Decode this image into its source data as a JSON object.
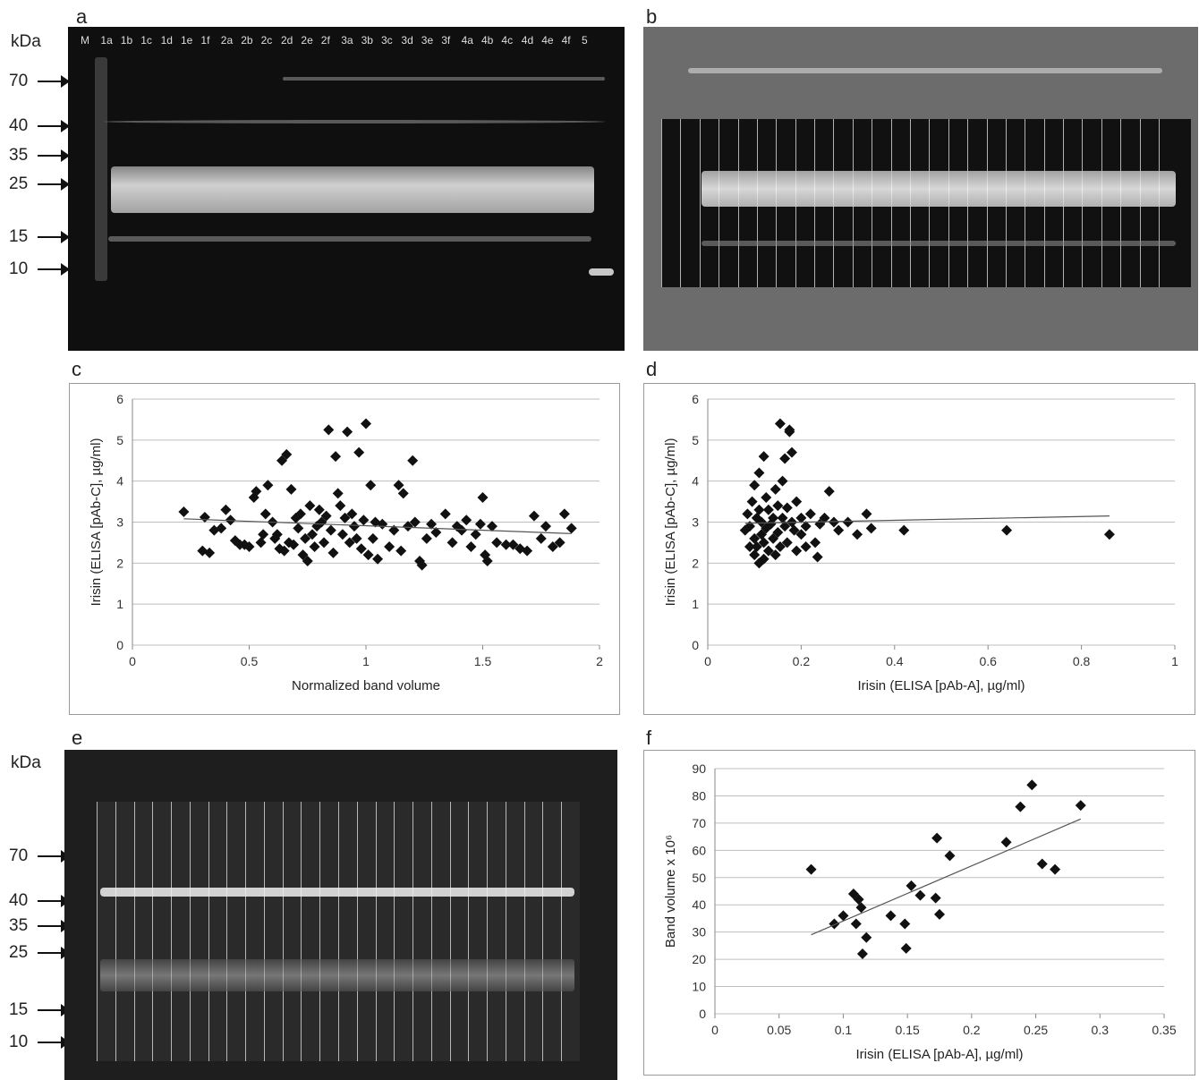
{
  "panels": {
    "a": "a",
    "b": "b",
    "c": "c",
    "d": "d",
    "e": "e",
    "f": "f"
  },
  "gel_a": {
    "unit": "kDa",
    "markers": [
      "70",
      "40",
      "35",
      "25",
      "15",
      "10"
    ],
    "lanes": [
      "M",
      "1a",
      "1b",
      "1c",
      "1d",
      "1e",
      "1f",
      "2a",
      "2b",
      "2c",
      "2d",
      "2e",
      "2f",
      "3a",
      "3b",
      "3c",
      "3d",
      "3e",
      "3f",
      "4a",
      "4b",
      "4c",
      "4d",
      "4e",
      "4f",
      "5"
    ]
  },
  "gel_e": {
    "unit": "kDa",
    "markers": [
      "70",
      "40",
      "35",
      "25",
      "15",
      "10"
    ]
  },
  "chart_data": [
    {
      "id": "c",
      "type": "scatter",
      "xlabel": "Normalized band volume",
      "ylabel": "Irisin (ELISA [pAb-C], µg/ml)",
      "xlim": [
        0,
        2
      ],
      "ylim": [
        0,
        6
      ],
      "xticks": [
        "0",
        "0.5",
        "1",
        "1.5",
        "2"
      ],
      "yticks": [
        "0",
        "1",
        "2",
        "3",
        "4",
        "5",
        "6"
      ],
      "trend": [
        [
          0.22,
          3.08
        ],
        [
          1.88,
          2.72
        ]
      ],
      "points": [
        [
          0.22,
          3.25
        ],
        [
          0.3,
          2.3
        ],
        [
          0.31,
          3.12
        ],
        [
          0.33,
          2.25
        ],
        [
          0.35,
          2.8
        ],
        [
          0.38,
          2.85
        ],
        [
          0.4,
          3.3
        ],
        [
          0.42,
          3.05
        ],
        [
          0.44,
          2.55
        ],
        [
          0.46,
          2.45
        ],
        [
          0.48,
          2.45
        ],
        [
          0.5,
          2.4
        ],
        [
          0.52,
          3.6
        ],
        [
          0.53,
          3.75
        ],
        [
          0.55,
          2.5
        ],
        [
          0.56,
          2.7
        ],
        [
          0.57,
          3.2
        ],
        [
          0.58,
          3.9
        ],
        [
          0.6,
          3.0
        ],
        [
          0.61,
          2.6
        ],
        [
          0.62,
          2.7
        ],
        [
          0.63,
          2.35
        ],
        [
          0.64,
          4.5
        ],
        [
          0.65,
          2.3
        ],
        [
          0.66,
          4.65
        ],
        [
          0.67,
          2.5
        ],
        [
          0.68,
          3.8
        ],
        [
          0.69,
          2.45
        ],
        [
          0.7,
          3.1
        ],
        [
          0.71,
          2.85
        ],
        [
          0.72,
          3.2
        ],
        [
          0.73,
          2.2
        ],
        [
          0.74,
          2.6
        ],
        [
          0.75,
          2.05
        ],
        [
          0.76,
          3.4
        ],
        [
          0.77,
          2.7
        ],
        [
          0.78,
          2.4
        ],
        [
          0.79,
          2.9
        ],
        [
          0.8,
          3.3
        ],
        [
          0.81,
          3.0
        ],
        [
          0.82,
          2.5
        ],
        [
          0.83,
          3.15
        ],
        [
          0.84,
          5.25
        ],
        [
          0.85,
          2.8
        ],
        [
          0.86,
          2.25
        ],
        [
          0.87,
          4.6
        ],
        [
          0.88,
          3.7
        ],
        [
          0.89,
          3.4
        ],
        [
          0.9,
          2.7
        ],
        [
          0.91,
          3.1
        ],
        [
          0.92,
          5.2
        ],
        [
          0.93,
          2.5
        ],
        [
          0.94,
          3.2
        ],
        [
          0.95,
          2.9
        ],
        [
          0.96,
          2.6
        ],
        [
          0.97,
          4.7
        ],
        [
          0.98,
          2.35
        ],
        [
          0.99,
          3.05
        ],
        [
          1.0,
          5.4
        ],
        [
          1.01,
          2.2
        ],
        [
          1.02,
          3.9
        ],
        [
          1.03,
          2.6
        ],
        [
          1.04,
          3.0
        ],
        [
          1.05,
          2.1
        ],
        [
          1.07,
          2.95
        ],
        [
          1.1,
          2.4
        ],
        [
          1.12,
          2.8
        ],
        [
          1.14,
          3.9
        ],
        [
          1.15,
          2.3
        ],
        [
          1.16,
          3.7
        ],
        [
          1.18,
          2.9
        ],
        [
          1.2,
          4.5
        ],
        [
          1.21,
          3.0
        ],
        [
          1.23,
          2.05
        ],
        [
          1.24,
          1.95
        ],
        [
          1.26,
          2.6
        ],
        [
          1.28,
          2.95
        ],
        [
          1.3,
          2.75
        ],
        [
          1.34,
          3.2
        ],
        [
          1.37,
          2.5
        ],
        [
          1.39,
          2.9
        ],
        [
          1.41,
          2.8
        ],
        [
          1.43,
          3.05
        ],
        [
          1.45,
          2.4
        ],
        [
          1.47,
          2.7
        ],
        [
          1.49,
          2.95
        ],
        [
          1.5,
          3.6
        ],
        [
          1.51,
          2.2
        ],
        [
          1.52,
          2.05
        ],
        [
          1.54,
          2.9
        ],
        [
          1.56,
          2.5
        ],
        [
          1.6,
          2.45
        ],
        [
          1.63,
          2.45
        ],
        [
          1.66,
          2.35
        ],
        [
          1.69,
          2.3
        ],
        [
          1.72,
          3.15
        ],
        [
          1.75,
          2.6
        ],
        [
          1.77,
          2.9
        ],
        [
          1.8,
          2.4
        ],
        [
          1.83,
          2.5
        ],
        [
          1.85,
          3.2
        ],
        [
          1.88,
          2.85
        ]
      ]
    },
    {
      "id": "d",
      "type": "scatter",
      "xlabel": "Irisin (ELISA [pAb-A], µg/ml)",
      "ylabel": "Irisin (ELISA [pAb-C], µg/ml)",
      "xlim": [
        0,
        1
      ],
      "ylim": [
        0,
        6
      ],
      "xticks": [
        "0",
        "0.2",
        "0.4",
        "0.6",
        "0.8",
        "1"
      ],
      "yticks": [
        "0",
        "1",
        "2",
        "3",
        "4",
        "5",
        "6"
      ],
      "trend": [
        [
          0.08,
          2.97
        ],
        [
          0.86,
          3.15
        ]
      ],
      "points": [
        [
          0.08,
          2.8
        ],
        [
          0.085,
          3.2
        ],
        [
          0.09,
          2.4
        ],
        [
          0.09,
          2.9
        ],
        [
          0.095,
          3.5
        ],
        [
          0.1,
          2.2
        ],
        [
          0.1,
          2.6
        ],
        [
          0.1,
          3.9
        ],
        [
          0.105,
          3.1
        ],
        [
          0.105,
          2.4
        ],
        [
          0.11,
          4.2
        ],
        [
          0.11,
          2.0
        ],
        [
          0.11,
          3.3
        ],
        [
          0.115,
          2.7
        ],
        [
          0.115,
          3.0
        ],
        [
          0.12,
          4.6
        ],
        [
          0.12,
          2.1
        ],
        [
          0.12,
          2.5
        ],
        [
          0.125,
          3.6
        ],
        [
          0.125,
          2.85
        ],
        [
          0.13,
          3.3
        ],
        [
          0.13,
          2.3
        ],
        [
          0.135,
          2.95
        ],
        [
          0.14,
          2.6
        ],
        [
          0.14,
          3.1
        ],
        [
          0.145,
          2.2
        ],
        [
          0.145,
          3.8
        ],
        [
          0.15,
          3.4
        ],
        [
          0.15,
          2.75
        ],
        [
          0.155,
          5.4
        ],
        [
          0.155,
          2.4
        ],
        [
          0.16,
          3.1
        ],
        [
          0.16,
          4.0
        ],
        [
          0.165,
          2.9
        ],
        [
          0.165,
          4.55
        ],
        [
          0.17,
          3.35
        ],
        [
          0.17,
          2.5
        ],
        [
          0.175,
          5.2
        ],
        [
          0.175,
          5.25
        ],
        [
          0.18,
          3.0
        ],
        [
          0.18,
          4.7
        ],
        [
          0.185,
          2.8
        ],
        [
          0.19,
          3.5
        ],
        [
          0.19,
          2.3
        ],
        [
          0.2,
          3.1
        ],
        [
          0.2,
          2.7
        ],
        [
          0.21,
          2.9
        ],
        [
          0.21,
          2.4
        ],
        [
          0.22,
          3.2
        ],
        [
          0.23,
          2.5
        ],
        [
          0.235,
          2.15
        ],
        [
          0.24,
          2.95
        ],
        [
          0.25,
          3.1
        ],
        [
          0.26,
          3.75
        ],
        [
          0.27,
          3.0
        ],
        [
          0.28,
          2.8
        ],
        [
          0.3,
          3.0
        ],
        [
          0.32,
          2.7
        ],
        [
          0.34,
          3.2
        ],
        [
          0.35,
          2.85
        ],
        [
          0.42,
          2.8
        ],
        [
          0.64,
          2.8
        ],
        [
          0.86,
          2.7
        ]
      ]
    },
    {
      "id": "f",
      "type": "scatter",
      "xlabel": "Irisin (ELISA [pAb-A], µg/ml)",
      "ylabel": "Band volume x 10⁶",
      "xlim": [
        0,
        0.35
      ],
      "ylim": [
        0,
        90
      ],
      "xticks": [
        "0",
        "0.05",
        "0.1",
        "0.15",
        "0.2",
        "0.25",
        "0.3",
        "0.35"
      ],
      "yticks": [
        "0",
        "10",
        "20",
        "30",
        "40",
        "50",
        "60",
        "70",
        "80",
        "90"
      ],
      "trend": [
        [
          0.075,
          29
        ],
        [
          0.285,
          71.5
        ]
      ],
      "points": [
        [
          0.075,
          53
        ],
        [
          0.093,
          33
        ],
        [
          0.1,
          36
        ],
        [
          0.108,
          44
        ],
        [
          0.11,
          33
        ],
        [
          0.112,
          42
        ],
        [
          0.114,
          39
        ],
        [
          0.115,
          22
        ],
        [
          0.118,
          28
        ],
        [
          0.137,
          36
        ],
        [
          0.148,
          33
        ],
        [
          0.149,
          24
        ],
        [
          0.153,
          47
        ],
        [
          0.16,
          43.5
        ],
        [
          0.172,
          42.5
        ],
        [
          0.173,
          64.5
        ],
        [
          0.175,
          36.5
        ],
        [
          0.183,
          58
        ],
        [
          0.227,
          63
        ],
        [
          0.238,
          76
        ],
        [
          0.247,
          84
        ],
        [
          0.255,
          55
        ],
        [
          0.265,
          53
        ],
        [
          0.285,
          76.5
        ]
      ]
    }
  ]
}
